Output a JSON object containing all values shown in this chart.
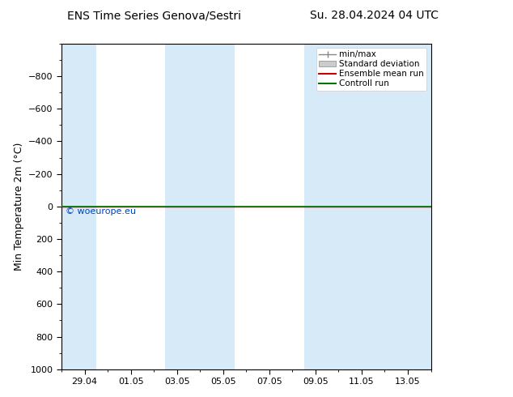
{
  "title_left": "ENS Time Series Genova/Sestri",
  "title_right": "Su. 28.04.2024 04 UTC",
  "ylabel": "Min Temperature 2m (°C)",
  "ylim_bottom": -1000,
  "ylim_top": 1000,
  "yticks": [
    -800,
    -600,
    -400,
    -200,
    0,
    200,
    400,
    600,
    800,
    1000
  ],
  "xtick_labels": [
    "29.04",
    "01.05",
    "03.05",
    "05.05",
    "07.05",
    "09.05",
    "11.05",
    "13.05"
  ],
  "xtick_positions": [
    1,
    3,
    5,
    7,
    9,
    11,
    13,
    15
  ],
  "xlim": [
    0,
    16
  ],
  "shaded_ranges": [
    [
      0,
      1.5
    ],
    [
      4.5,
      7.5
    ],
    [
      10.5,
      16
    ]
  ],
  "shaded_color": "#d6eaf8",
  "background_color": "#ffffff",
  "green_line_color": "#007700",
  "red_line_color": "#cc0000",
  "watermark": "© woeurope.eu",
  "watermark_color": "#0044bb",
  "legend_items": [
    "min/max",
    "Standard deviation",
    "Ensemble mean run",
    "Controll run"
  ],
  "legend_colors_line": [
    "#888888",
    "#aaaaaa",
    "#cc0000",
    "#007700"
  ],
  "title_fontsize": 10,
  "axis_fontsize": 8,
  "ylabel_fontsize": 9
}
